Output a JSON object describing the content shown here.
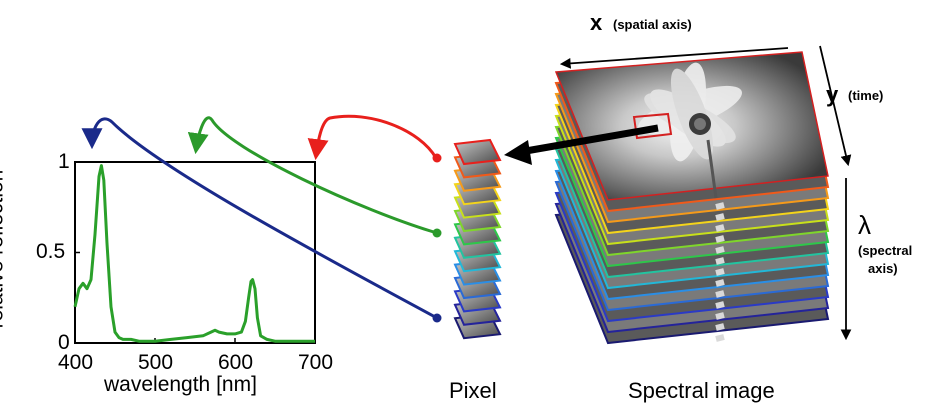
{
  "plot": {
    "xlabel": "wavelength [nm]",
    "ylabel": "relative reflection",
    "xticks": [
      "400",
      "500",
      "600",
      "700"
    ],
    "yticks": [
      "1",
      "0.5",
      "0"
    ]
  },
  "chart_data": {
    "type": "line",
    "title": "",
    "xlabel": "wavelength [nm]",
    "ylabel": "relative reflection",
    "xlim": [
      400,
      700
    ],
    "ylim": [
      0,
      1
    ],
    "series": [
      {
        "color": "#2aa02a",
        "x": [
          400,
          405,
          410,
          415,
          420,
          425,
          430,
          433,
          436,
          440,
          445,
          450,
          455,
          460,
          470,
          480,
          500,
          520,
          540,
          560,
          570,
          575,
          580,
          590,
          600,
          608,
          613,
          617,
          620,
          622,
          625,
          628,
          632,
          640,
          650,
          660,
          680,
          700
        ],
        "y": [
          0.2,
          0.3,
          0.33,
          0.3,
          0.35,
          0.6,
          0.92,
          0.98,
          0.9,
          0.55,
          0.2,
          0.06,
          0.03,
          0.02,
          0.02,
          0.01,
          0.01,
          0.02,
          0.03,
          0.04,
          0.06,
          0.07,
          0.06,
          0.05,
          0.05,
          0.06,
          0.12,
          0.25,
          0.34,
          0.35,
          0.3,
          0.14,
          0.04,
          0.02,
          0.01,
          0.01,
          0.01,
          0.01
        ]
      }
    ]
  },
  "labels": {
    "pixel": "Pixel",
    "spectral_image": "Spectral image",
    "x_symbol": "x",
    "x_desc": "(spatial axis)",
    "y_symbol": "y",
    "y_desc": "(time)",
    "lambda_symbol": "λ",
    "lambda_desc_1": "(spectral",
    "lambda_desc_2": "axis)"
  },
  "colors": {
    "red": "#e8201c",
    "green": "#2b9a2b",
    "blue": "#1a2a8a",
    "plot_line": "#2aa02a",
    "layers": [
      "#e8201c",
      "#f05a1a",
      "#f59a1a",
      "#f4d41a",
      "#c8e01a",
      "#7fd62a",
      "#2ec74a",
      "#22c4a0",
      "#22b8d8",
      "#2a8ee6",
      "#2a6ad6",
      "#2a3ac6",
      "#24239a",
      "#1a1a70"
    ]
  }
}
